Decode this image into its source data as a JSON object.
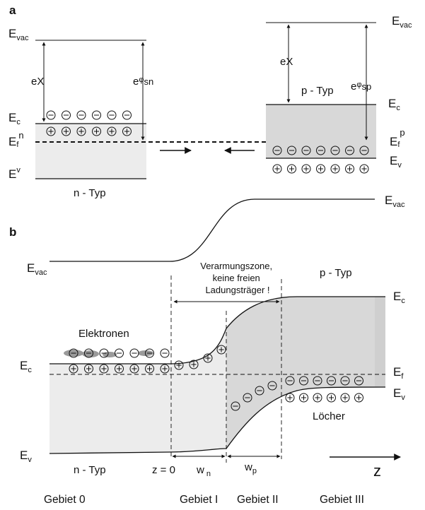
{
  "panel_a": {
    "letter": "a",
    "n_side": {
      "evac": {
        "main": "E",
        "sub": "vac"
      },
      "ex": "eX",
      "ephi": {
        "main": "e",
        "phi": "φ",
        "sub": "sn"
      },
      "ec": {
        "main": "E",
        "sub": "c"
      },
      "ef": {
        "main": "E",
        "sub": "f",
        "sup": "n"
      },
      "ev": {
        "main": "E",
        "sup": "v"
      },
      "type_label": "n - Typ",
      "electron_count": 6,
      "donor_count": 6
    },
    "p_side": {
      "evac": {
        "main": "E",
        "sub": "vac"
      },
      "ex": "eX",
      "ephi": {
        "main": "e",
        "phi": "φ",
        "sub": "sp"
      },
      "ec": {
        "main": "E",
        "sub": "c"
      },
      "ef": {
        "main": "E",
        "sub": "f",
        "sup": "p"
      },
      "ev": {
        "main": "E",
        "sub": "v"
      },
      "type_label": "p - Typ",
      "hole_count": 7,
      "acceptor_count": 7
    }
  },
  "panel_b": {
    "letter": "b",
    "evac_left": {
      "main": "E",
      "sub": "vac"
    },
    "evac_right": {
      "main": "E",
      "sub": "vac"
    },
    "ec_left": {
      "main": "E",
      "sub": "c"
    },
    "ev_left": {
      "main": "E",
      "sub": "v"
    },
    "ec_right": {
      "main": "E",
      "sub": "c"
    },
    "ef_right": {
      "main": "E",
      "sub": "f"
    },
    "ev_right": {
      "main": "E",
      "sub": "v"
    },
    "depletion_note": [
      "Verarmungszone,",
      "keine freien",
      "Ladungsträger !"
    ],
    "electrons_label": "Elektronen",
    "holes_label": "Löcher",
    "n_type": "n - Typ",
    "p_type": "p - Typ",
    "z0": "z = 0",
    "wn": {
      "main": "w",
      "sub": "n"
    },
    "wp": {
      "main": "w",
      "sub": "p"
    },
    "z_axis": "z",
    "regions": [
      "Gebiet 0",
      "Gebiet I",
      "Gebiet II",
      "Gebiet III"
    ]
  },
  "colors": {
    "line": "#111111",
    "band_fill": "#e6e6e6",
    "band_fill_dark": "#d2d2d2",
    "electron_blob": "#9a9a9a"
  }
}
